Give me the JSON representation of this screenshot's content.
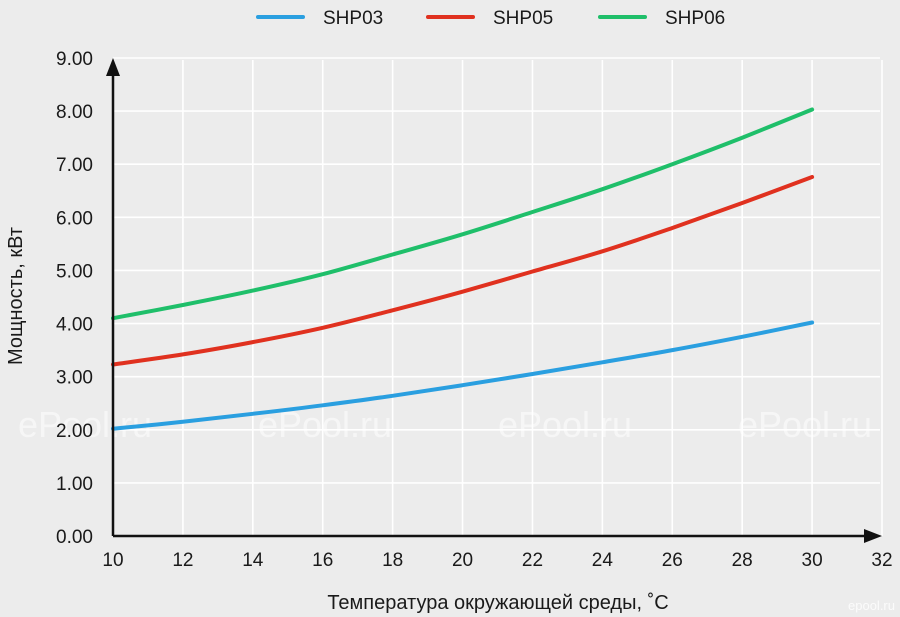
{
  "chart_data": {
    "type": "line",
    "title": "",
    "xlabel": "Температура окружающей среды, ˚С",
    "ylabel": "Мощность, кВт",
    "xlim": [
      10,
      32
    ],
    "ylim": [
      0,
      9
    ],
    "x_ticks": [
      "10",
      "12",
      "14",
      "16",
      "18",
      "20",
      "22",
      "24",
      "26",
      "28",
      "30",
      "32"
    ],
    "y_ticks": [
      "0.00",
      "1.00",
      "2.00",
      "3.00",
      "4.00",
      "5.00",
      "6.00",
      "7.00",
      "8.00",
      "9.00"
    ],
    "grid": true,
    "legend_position": "top",
    "x": [
      10,
      12,
      14,
      16,
      18,
      20,
      22,
      24,
      26,
      28,
      30
    ],
    "series": [
      {
        "name": "SHP03",
        "color": "#2a9fe0",
        "values": [
          2.02,
          2.15,
          2.3,
          2.46,
          2.64,
          2.84,
          3.05,
          3.27,
          3.5,
          3.75,
          4.02
        ]
      },
      {
        "name": "SHP05",
        "color": "#e0311f",
        "values": [
          3.23,
          3.42,
          3.65,
          3.92,
          4.25,
          4.6,
          4.98,
          5.36,
          5.8,
          6.27,
          6.76
        ]
      },
      {
        "name": "SHP06",
        "color": "#1fbf6a",
        "values": [
          4.1,
          4.35,
          4.62,
          4.93,
          5.3,
          5.68,
          6.1,
          6.53,
          7.0,
          7.5,
          8.03
        ]
      }
    ]
  },
  "watermarks": [
    "ePool.ru",
    "ePool.ru",
    "ePool.ru",
    "ePool.ru",
    "epool.ru"
  ]
}
